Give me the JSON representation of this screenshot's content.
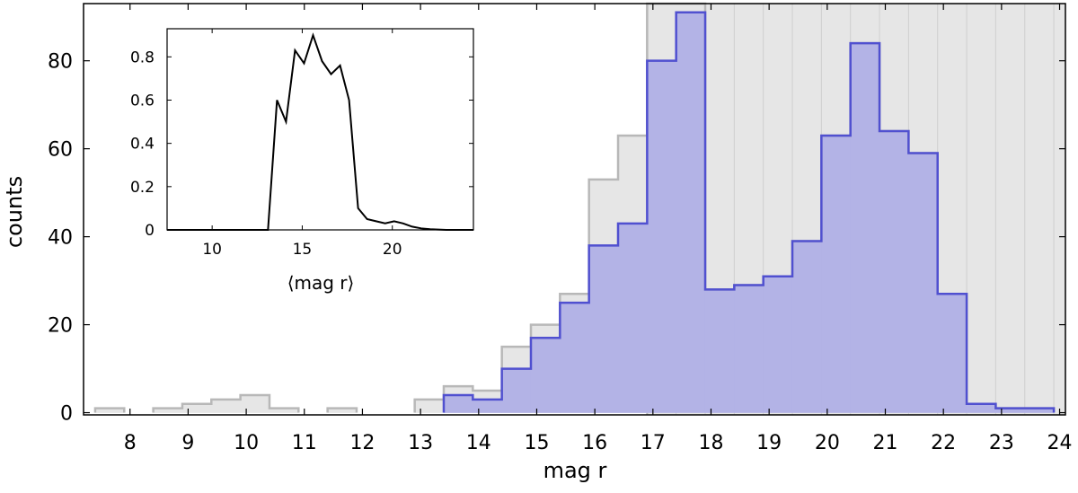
{
  "chart_data": [
    {
      "type": "bar",
      "histogram": "step",
      "title": "",
      "xlabel": "mag r",
      "ylabel": "counts",
      "xlim": [
        7.2,
        24.1
      ],
      "ylim": [
        -0.5,
        93
      ],
      "xticks": [
        8,
        9,
        10,
        11,
        12,
        13,
        14,
        15,
        16,
        17,
        18,
        19,
        20,
        21,
        22,
        23,
        24
      ],
      "yticks": [
        0,
        20,
        40,
        60,
        80
      ],
      "bin_width": 0.5,
      "bin_start": 7.4,
      "grid": false,
      "legend": "none",
      "background_band": {
        "x_from": 16.9,
        "x_to": 24.1
      },
      "series": [
        {
          "style": "gray",
          "values": [
            1,
            0,
            1,
            2,
            3,
            4,
            1,
            0,
            1,
            0,
            0,
            3,
            6,
            5,
            15,
            20,
            27,
            53,
            63,
            93,
            93,
            28,
            29,
            31,
            39,
            63,
            84,
            64,
            59,
            27,
            2,
            1,
            1
          ]
        },
        {
          "style": "blue",
          "values": [
            0,
            0,
            0,
            0,
            0,
            0,
            0,
            0,
            0,
            0,
            0,
            0,
            4,
            3,
            10,
            17,
            25,
            38,
            43,
            80,
            91,
            28,
            29,
            31,
            39,
            63,
            84,
            64,
            59,
            27,
            2,
            1,
            1
          ]
        }
      ],
      "colors": {
        "gray_fill": "#e6e6e6",
        "gray_line": "#b8b8b8",
        "blue_fill": "#b3b3e6",
        "blue_line": "#5050d0",
        "band_fill": "#e6e6e6",
        "band_line": "#cfcfcf"
      }
    },
    {
      "type": "line",
      "inset": true,
      "title": "",
      "xlabel": "⟨mag r⟩",
      "ylabel": "",
      "xlim": [
        7.5,
        24.5
      ],
      "ylim": [
        0,
        0.93
      ],
      "xticks": [
        10,
        15,
        20
      ],
      "yticks": [
        0,
        0.2,
        0.4,
        0.6,
        0.8
      ],
      "ytick_labels": [
        "0",
        "0.2",
        "0.4",
        "0.6",
        "0.8"
      ],
      "grid": false,
      "series": [
        {
          "color": "#000000",
          "x": [
            7.5,
            13.1,
            13.6,
            14.1,
            14.6,
            15.1,
            15.6,
            16.1,
            16.6,
            17.1,
            17.6,
            18.1,
            18.6,
            19.1,
            19.6,
            20.1,
            20.6,
            21.1,
            21.6,
            22.1,
            23,
            24.5
          ],
          "y": [
            0,
            0,
            0.6,
            0.5,
            0.83,
            0.77,
            0.9,
            0.78,
            0.72,
            0.76,
            0.6,
            0.1,
            0.05,
            0.04,
            0.03,
            0.04,
            0.03,
            0.015,
            0.007,
            0.003,
            0,
            0
          ]
        }
      ]
    }
  ]
}
